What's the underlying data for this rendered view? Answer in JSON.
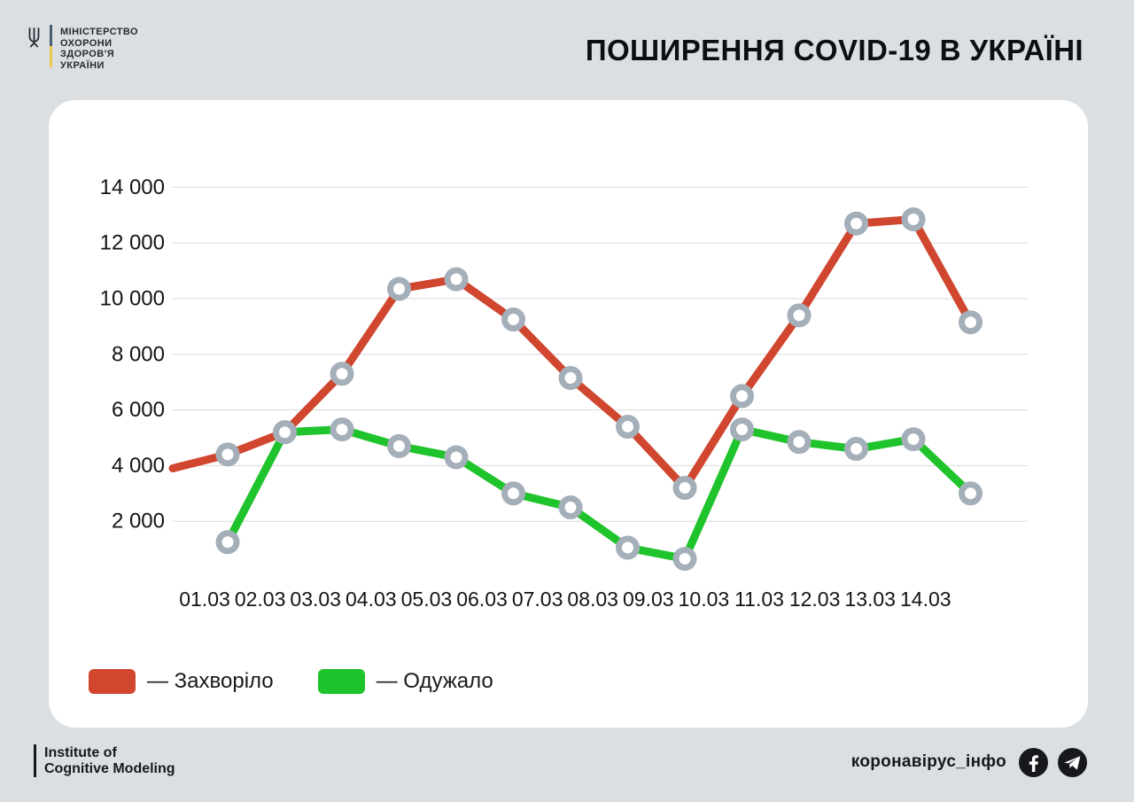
{
  "header": {
    "title": "ПОШИРЕННЯ COVID-19 В УКРАЇНІ",
    "logo": {
      "lines": [
        "МІНІСТЕРСТВО",
        "ОХОРОНИ",
        "ЗДОРОВ'Я",
        "УКРАЇНИ"
      ]
    }
  },
  "legend": [
    {
      "label": "— Захворіло",
      "color": "#d0462e"
    },
    {
      "label": "— Одужало",
      "color": "#1fc32b"
    }
  ],
  "footer": {
    "institute": {
      "line1": "Institute of",
      "line2": "Cognitive Modeling"
    },
    "social_handle": "коронавірус_інфо",
    "icons": [
      "facebook-icon",
      "telegram-icon"
    ]
  },
  "colors": {
    "background": "#dcdfe2",
    "card": "#ffffff",
    "infected": "#d0462e",
    "recovered": "#1fc32b",
    "marker_ring": "#a4afba",
    "gridline": "#d8d8d8",
    "text": "#141414"
  },
  "chart_data": {
    "type": "line",
    "title": "",
    "xlabel": "",
    "ylabel": "",
    "ylim": [
      0,
      14500
    ],
    "grid": true,
    "legend_position": "bottom-left",
    "x_labels": [
      "01.03",
      "02.03",
      "03.03",
      "04.03",
      "05.03",
      "06.03",
      "07.03",
      "08.03",
      "09.03",
      "10.03",
      "11.03",
      "12.03",
      "13.03",
      "14.03"
    ],
    "y_ticks": [
      {
        "value": 2000,
        "label": "2 000"
      },
      {
        "value": 4000,
        "label": "4 000"
      },
      {
        "value": 6000,
        "label": "6 000"
      },
      {
        "value": 8000,
        "label": "8 000"
      },
      {
        "value": 10000,
        "label": "10 000"
      },
      {
        "value": 12000,
        "label": "12 000"
      },
      {
        "value": 14000,
        "label": "14 000"
      }
    ],
    "series": [
      {
        "id": "zakhvorilo",
        "name": "Захворіло",
        "color": "#d0462e",
        "lead_in": 3900,
        "values": [
          4400,
          5200,
          7300,
          10350,
          10700,
          9250,
          7150,
          5400,
          3200,
          6500,
          9400,
          12700,
          12850,
          9150
        ]
      },
      {
        "id": "oduzhalo",
        "name": "Одужало",
        "color": "#1fc32b",
        "lead_in": null,
        "values": [
          1250,
          5200,
          5300,
          4700,
          4300,
          3000,
          2500,
          1050,
          650,
          5300,
          4850,
          4600,
          4950,
          3000
        ]
      }
    ],
    "marker": {
      "fill": "#ffffff",
      "stroke": "#a4afba"
    },
    "gridline_color": "#d8d8d8"
  }
}
